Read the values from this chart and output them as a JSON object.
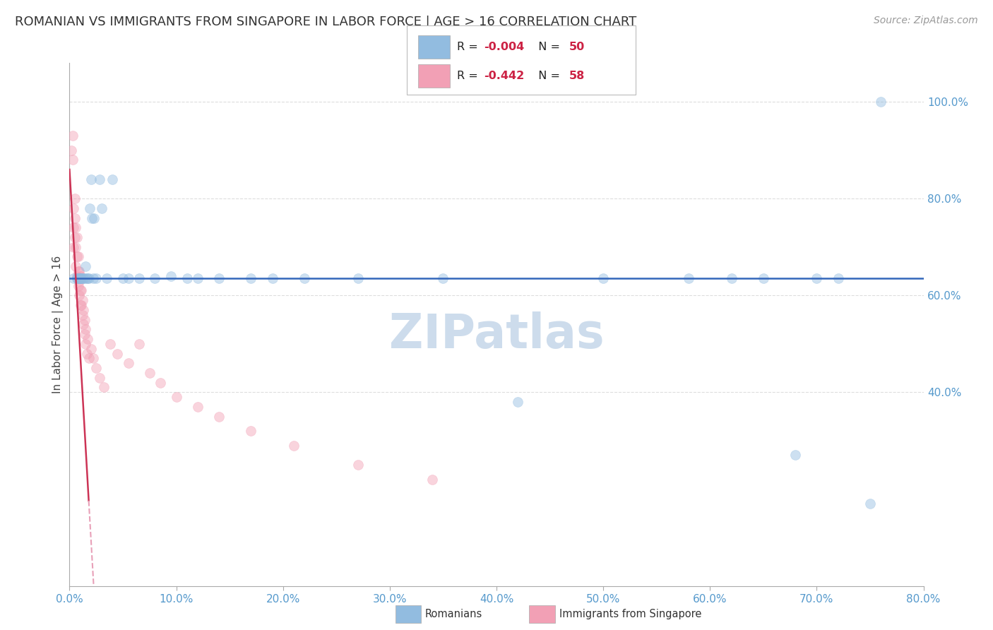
{
  "title": "ROMANIAN VS IMMIGRANTS FROM SINGAPORE IN LABOR FORCE | AGE > 16 CORRELATION CHART",
  "source": "Source: ZipAtlas.com",
  "ylabel": "In Labor Force | Age > 16",
  "watermark": "ZIPatlas",
  "blue_color": "#92bce0",
  "pink_color": "#f2a0b5",
  "blue_line_color": "#3366bb",
  "pink_line_solid_color": "#cc3355",
  "pink_line_dash_color": "#e8a0b8",
  "romanians_x": [
    0.004,
    0.007,
    0.007,
    0.009,
    0.009,
    0.009,
    0.01,
    0.01,
    0.011,
    0.011,
    0.012,
    0.013,
    0.014,
    0.015,
    0.016,
    0.017,
    0.018,
    0.019,
    0.02,
    0.021,
    0.022,
    0.023,
    0.025,
    0.028,
    0.03,
    0.035,
    0.04,
    0.05,
    0.055,
    0.065,
    0.08,
    0.095,
    0.11,
    0.12,
    0.14,
    0.17,
    0.19,
    0.22,
    0.27,
    0.35,
    0.42,
    0.5,
    0.58,
    0.62,
    0.65,
    0.68,
    0.7,
    0.72,
    0.75,
    0.76
  ],
  "romanians_y": [
    0.636,
    0.636,
    0.636,
    0.636,
    0.636,
    0.636,
    0.636,
    0.636,
    0.636,
    0.636,
    0.636,
    0.636,
    0.636,
    0.66,
    0.636,
    0.636,
    0.636,
    0.78,
    0.84,
    0.76,
    0.636,
    0.76,
    0.636,
    0.84,
    0.78,
    0.636,
    0.84,
    0.636,
    0.636,
    0.636,
    0.636,
    0.64,
    0.636,
    0.636,
    0.636,
    0.636,
    0.636,
    0.636,
    0.636,
    0.636,
    0.38,
    0.636,
    0.636,
    0.636,
    0.636,
    0.27,
    0.636,
    0.636,
    0.17,
    1.0
  ],
  "singapore_x": [
    0.002,
    0.003,
    0.003,
    0.004,
    0.004,
    0.004,
    0.005,
    0.005,
    0.005,
    0.006,
    0.006,
    0.006,
    0.007,
    0.007,
    0.007,
    0.008,
    0.008,
    0.008,
    0.009,
    0.009,
    0.009,
    0.009,
    0.01,
    0.01,
    0.01,
    0.01,
    0.01,
    0.011,
    0.011,
    0.012,
    0.012,
    0.013,
    0.013,
    0.014,
    0.014,
    0.015,
    0.015,
    0.016,
    0.017,
    0.018,
    0.02,
    0.022,
    0.025,
    0.028,
    0.032,
    0.038,
    0.045,
    0.055,
    0.065,
    0.075,
    0.085,
    0.1,
    0.12,
    0.14,
    0.17,
    0.21,
    0.27,
    0.34
  ],
  "singapore_y": [
    0.9,
    0.88,
    0.93,
    0.7,
    0.74,
    0.78,
    0.72,
    0.76,
    0.8,
    0.66,
    0.7,
    0.74,
    0.64,
    0.68,
    0.72,
    0.62,
    0.65,
    0.68,
    0.6,
    0.63,
    0.65,
    0.636,
    0.58,
    0.61,
    0.64,
    0.636,
    0.636,
    0.58,
    0.61,
    0.56,
    0.59,
    0.54,
    0.57,
    0.52,
    0.55,
    0.5,
    0.53,
    0.48,
    0.51,
    0.47,
    0.49,
    0.47,
    0.45,
    0.43,
    0.41,
    0.5,
    0.48,
    0.46,
    0.5,
    0.44,
    0.42,
    0.39,
    0.37,
    0.35,
    0.32,
    0.29,
    0.25,
    0.22
  ],
  "xlim": [
    0.0,
    0.8
  ],
  "ylim": [
    0.0,
    1.08
  ],
  "ytick_positions": [
    0.4,
    0.6,
    0.8,
    1.0
  ],
  "ytick_labels": [
    "40.0%",
    "60.0%",
    "80.0%",
    "100.0%"
  ],
  "grid_color": "#dddddd",
  "grid_linestyle": "--",
  "background_color": "#ffffff",
  "title_fontsize": 13,
  "axis_label_fontsize": 11,
  "tick_fontsize": 11,
  "source_fontsize": 10,
  "watermark_fontsize": 48,
  "watermark_color": "#cddcec",
  "scatter_size": 100,
  "scatter_alpha": 0.45,
  "blue_R": "-0.004",
  "blue_N": "50",
  "pink_R": "-0.442",
  "pink_N": "58",
  "blue_reg_slope": 0.0,
  "blue_reg_intercept": 0.636,
  "pink_reg_slope": -38.0,
  "pink_reg_intercept": 0.86
}
